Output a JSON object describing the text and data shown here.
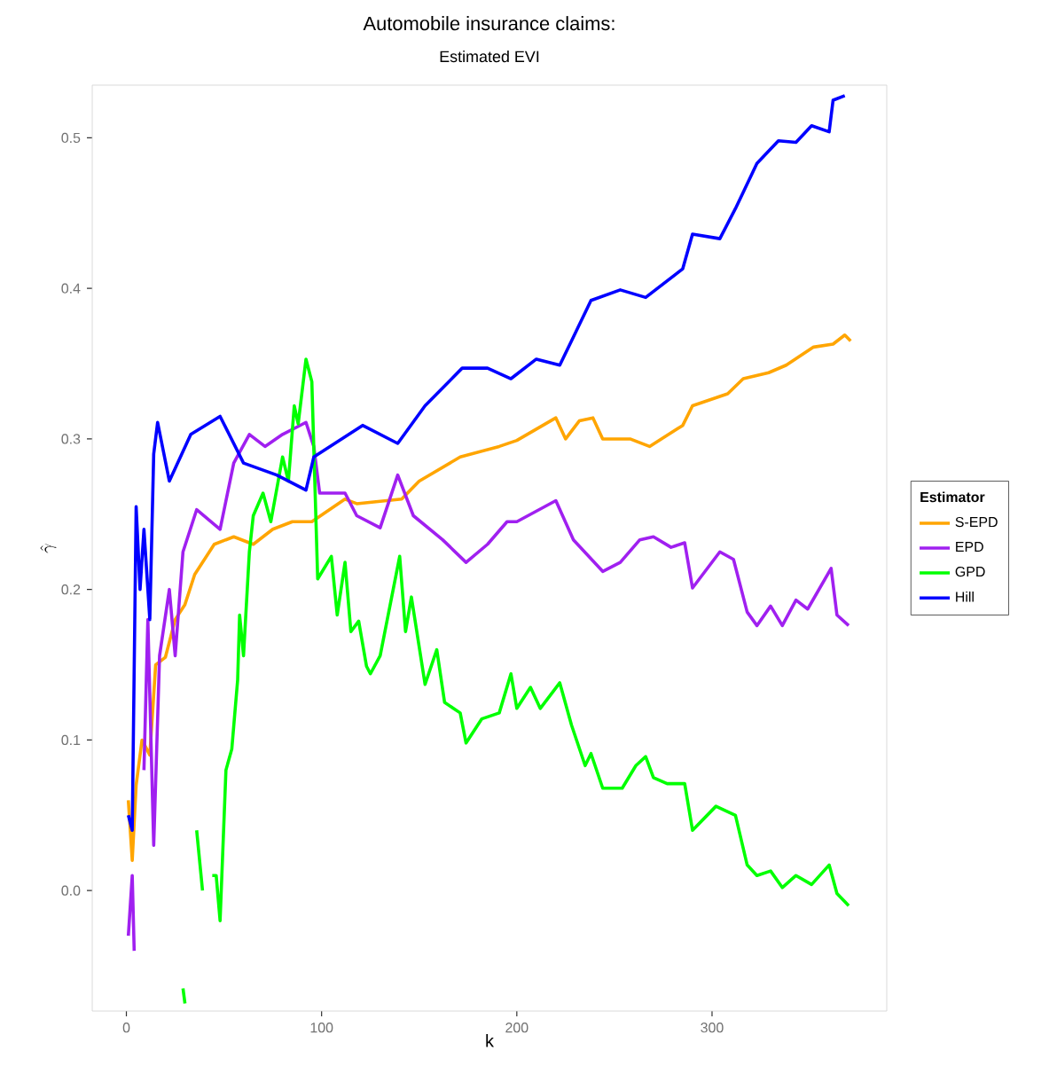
{
  "chart_data": {
    "type": "line",
    "title": "Automobile insurance claims:",
    "subtitle": "Estimated EVI",
    "xlabel": "k",
    "ylabel": "\\hat{\\gamma}",
    "legend_title": "Estimator",
    "legend": "right",
    "xlim": [
      -17.5,
      389.5
    ],
    "ylim": [
      -0.08,
      0.535
    ],
    "xticks": [
      0,
      100,
      200,
      300
    ],
    "yticks": [
      {
        "value": 0,
        "label": "0.0"
      },
      0.1,
      0.2,
      0.3,
      0.4,
      0.5
    ],
    "series": [
      {
        "name": "S-EPD",
        "color": "#ffa500",
        "x": [
          1,
          3,
          5,
          8,
          12,
          15,
          20,
          25,
          30,
          35,
          40,
          45,
          55,
          65,
          75,
          85,
          95,
          112,
          118,
          141,
          150,
          171,
          191,
          200,
          220,
          225,
          232,
          239,
          244,
          258,
          268,
          285,
          290,
          308,
          316,
          329,
          338,
          352,
          362,
          368,
          371
        ],
        "values": [
          0.06,
          0.02,
          0.07,
          0.1,
          0.09,
          0.15,
          0.155,
          0.18,
          0.19,
          0.21,
          0.22,
          0.23,
          0.235,
          0.23,
          0.24,
          0.245,
          0.245,
          0.26,
          0.257,
          0.26,
          0.272,
          0.288,
          0.295,
          0.299,
          0.314,
          0.3,
          0.312,
          0.314,
          0.3,
          0.3,
          0.295,
          0.309,
          0.322,
          0.33,
          0.34,
          0.344,
          0.349,
          0.361,
          0.363,
          0.369,
          0.365
        ]
      },
      {
        "name": "EPD",
        "color": "#a020f0",
        "x": [
          1,
          3,
          4,
          6,
          7,
          9,
          11,
          14,
          17,
          22,
          25,
          29,
          36,
          48,
          55,
          63,
          71,
          80,
          92,
          96,
          99,
          112,
          118,
          130,
          139,
          147,
          162,
          174,
          185,
          195,
          200,
          220,
          229,
          244,
          253,
          263,
          270,
          279,
          286,
          290,
          304,
          311,
          318,
          323,
          330,
          336,
          343,
          349,
          361,
          364,
          370
        ],
        "values": [
          -0.03,
          0.01,
          -0.04,
          null,
          null,
          0.08,
          0.18,
          0.03,
          0.156,
          0.2,
          0.156,
          0.225,
          0.253,
          0.24,
          0.284,
          0.303,
          0.295,
          0.303,
          0.311,
          0.295,
          0.264,
          0.264,
          0.249,
          0.241,
          0.276,
          0.249,
          0.233,
          0.218,
          0.23,
          0.245,
          0.245,
          0.259,
          0.233,
          0.212,
          0.218,
          0.233,
          0.235,
          0.228,
          0.231,
          0.201,
          0.225,
          0.22,
          0.185,
          0.176,
          0.189,
          0.176,
          0.193,
          0.187,
          0.214,
          0.183,
          0.176
        ]
      },
      {
        "name": "GPD",
        "color": "#00ff00",
        "x": [
          29,
          30,
          31,
          36,
          39,
          40,
          44,
          46,
          48,
          51,
          54,
          57,
          58,
          60,
          63,
          65,
          70,
          74,
          80,
          83,
          86,
          88,
          92,
          95,
          98,
          105,
          108,
          112,
          115,
          119,
          123,
          125,
          130,
          140,
          143,
          146,
          153,
          159,
          163,
          171,
          174,
          182,
          191,
          197,
          200,
          207,
          212,
          222,
          228,
          235,
          238,
          244,
          254,
          261,
          266,
          270,
          277,
          286,
          290,
          302,
          312,
          318,
          323,
          330,
          336,
          343,
          351,
          360,
          364,
          370
        ],
        "values": [
          -0.065,
          -0.075,
          null,
          0.04,
          0.0,
          null,
          0.01,
          0.01,
          -0.02,
          0.08,
          0.094,
          0.14,
          0.183,
          0.156,
          0.225,
          0.249,
          0.264,
          0.245,
          0.288,
          0.272,
          0.322,
          0.31,
          0.353,
          0.338,
          0.207,
          0.222,
          0.183,
          0.218,
          0.172,
          0.179,
          0.149,
          0.144,
          0.156,
          0.222,
          0.172,
          0.195,
          0.137,
          0.16,
          0.125,
          0.118,
          0.098,
          0.114,
          0.118,
          0.144,
          0.121,
          0.135,
          0.121,
          0.138,
          0.11,
          0.083,
          0.091,
          0.068,
          0.068,
          0.083,
          0.089,
          0.075,
          0.071,
          0.071,
          0.04,
          0.056,
          0.05,
          0.017,
          0.01,
          0.013,
          0.002,
          0.01,
          0.004,
          0.017,
          -0.002,
          -0.01
        ]
      },
      {
        "name": "Hill",
        "color": "#0000ff",
        "x": [
          1,
          3,
          5,
          7,
          9,
          12,
          14,
          16,
          22,
          33,
          48,
          60,
          77,
          92,
          96,
          121,
          139,
          153,
          172,
          185,
          197,
          210,
          222,
          228,
          238,
          253,
          266,
          285,
          290,
          304,
          312,
          323,
          334,
          343,
          351,
          360,
          362,
          368
        ],
        "values": [
          0.05,
          0.04,
          0.255,
          0.2,
          0.24,
          0.18,
          0.29,
          0.311,
          0.272,
          0.303,
          0.315,
          0.284,
          0.276,
          0.266,
          0.288,
          0.309,
          0.297,
          0.322,
          0.347,
          0.347,
          0.34,
          0.353,
          0.349,
          0.365,
          0.392,
          0.399,
          0.394,
          0.413,
          0.436,
          0.433,
          0.453,
          0.483,
          0.498,
          0.497,
          0.508,
          0.504,
          0.525,
          0.528
        ]
      }
    ]
  }
}
